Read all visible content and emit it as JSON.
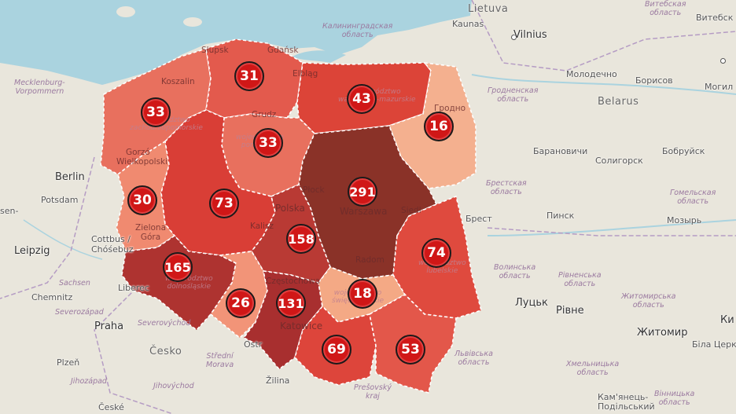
{
  "map": {
    "accent_badge": "#d01717",
    "regions": [
      {
        "id": "zachodniopomorskie",
        "value": 33,
        "color": "#e8705e"
      },
      {
        "id": "pomorskie",
        "value": 31,
        "color": "#e35a4d"
      },
      {
        "id": "warminsko-mazurskie",
        "value": 43,
        "color": "#dc4438"
      },
      {
        "id": "podlaskie",
        "value": 16,
        "color": "#f4b08f"
      },
      {
        "id": "kujawsko-pomorskie",
        "value": 33,
        "color": "#e8705e"
      },
      {
        "id": "lubuskie",
        "value": 30,
        "color": "#f08a70"
      },
      {
        "id": "wielkopolskie",
        "value": 73,
        "color": "#d93e36"
      },
      {
        "id": "mazowieckie",
        "value": 291,
        "color": "#8a3228"
      },
      {
        "id": "lodzkie",
        "value": 158,
        "color": "#b93a34"
      },
      {
        "id": "dolnoslaskie",
        "value": 165,
        "color": "#ae3330"
      },
      {
        "id": "opolskie",
        "value": 26,
        "color": "#f29478"
      },
      {
        "id": "slaskie",
        "value": 131,
        "color": "#a82f2f"
      },
      {
        "id": "swietokrzyskie",
        "value": 18,
        "color": "#f4a985"
      },
      {
        "id": "lubelskie",
        "value": 74,
        "color": "#df4a3e"
      },
      {
        "id": "malopolskie",
        "value": 69,
        "color": "#dd453b"
      },
      {
        "id": "podkarpackie",
        "value": 53,
        "color": "#e3574a"
      }
    ],
    "badges": [
      "33",
      "31",
      "43",
      "16",
      "33",
      "30",
      "73",
      "291",
      "158",
      "165",
      "26",
      "131",
      "18",
      "74",
      "69",
      "53"
    ],
    "cities_outside": {
      "lietuva": "Lietuva",
      "kaunas": "Kaunas",
      "vilnius": "Vilnius",
      "kaliningrad": "Калининградская",
      "kaliningrad2": "область",
      "molodechno": "Молодечно",
      "borisov": "Борисов",
      "mogil": "Могил",
      "belarus": "Belarus",
      "grodno_obl": "Гродненская",
      "grodno_obl2": "область",
      "baranovichi": "Барановичи",
      "soligorsk": "Солигорск",
      "bobruisk": "Бобруйск",
      "brest_obl": "Брестская",
      "brest_obl2": "область",
      "gomel_obl": "Гомельская",
      "gomel_obl2": "область",
      "pinsk": "Пинск",
      "mozyr": "Мозырь",
      "brest": "Брест",
      "vitebsk_obl": "Витебская",
      "vitebsk_obl2": "область",
      "vitebsk": "Витебск",
      "volyn_obl": "Волинська",
      "volyn_obl2": "область",
      "rivne_obl": "Рівненська",
      "rivne_obl2": "область",
      "zhytomyr_obl": "Житомирська",
      "zhytomyr_obl2": "область",
      "lutsk": "Луцьк",
      "rivne": "Рівне",
      "zhytomyr": "Житомир",
      "kyiv": "Ки",
      "bila": "Біла Церкв",
      "lviv_obl": "Львівська",
      "lviv_obl2": "область",
      "khmel_obl": "Хмельницька",
      "khmel_obl2": "область",
      "kamianets": "Кам'янець-",
      "kamianets2": "Подільський",
      "vinnytsia_obl": "Вінницька",
      "vinnytsia_obl2": "область",
      "berlin": "Berlin",
      "potsdam": "Potsdam",
      "mecklenburg": "Mecklenburg-",
      "vorpommern": "Vorpommern",
      "cottbus": "Cottbus /",
      "chosebuz": "Chóśebuz",
      "leipzig": "Leipzig",
      "sachsen": "Sachsen",
      "chemnitz": "Chemnitz",
      "severozapad": "Severozápad",
      "praha": "Praha",
      "severovychod": "Severovýchod",
      "cesko": "Česko",
      "plzen": "Plzeň",
      "jihozapad": "Jihozápad",
      "jihovychod": "Jihovýchod",
      "stredni": "Střední",
      "morava": "Morava",
      "zilina": "Žilina",
      "presovsky": "Prešovský",
      "kraj": "kraj",
      "ceske": "České",
      "sen": "sen-",
      "ost": "Ostr",
      "liberec": "Liberec"
    },
    "cities_inside": {
      "slupsk": "Słupsk",
      "gdansk": "Gdańsk",
      "koszalin": "Koszalin",
      "elblag": "Elbląg",
      "grudz": "Grudz",
      "gorzow": "Gorzó",
      "wielkopolski": "Wielkopolski",
      "plock": "Płock",
      "warszawa": "Warszawa",
      "siedlce": "Siedl",
      "polska": "Polska",
      "kalisz": "Kalisz",
      "zielona": "Zielona",
      "gora": "Góra",
      "radom": "Radom",
      "czestochowa": "Częstochowa",
      "katowice": "Katowice",
      "grodno": "Гродно"
    },
    "admin_inside": {
      "zach": "zachodniopomorskie",
      "pom": "pomorskie",
      "warm": "warmińsko-mazurskie",
      "woj": "województwo",
      "dol": "dolnośląskie",
      "lub": "lubelskie",
      "swi": "świętokrzyskie"
    }
  }
}
